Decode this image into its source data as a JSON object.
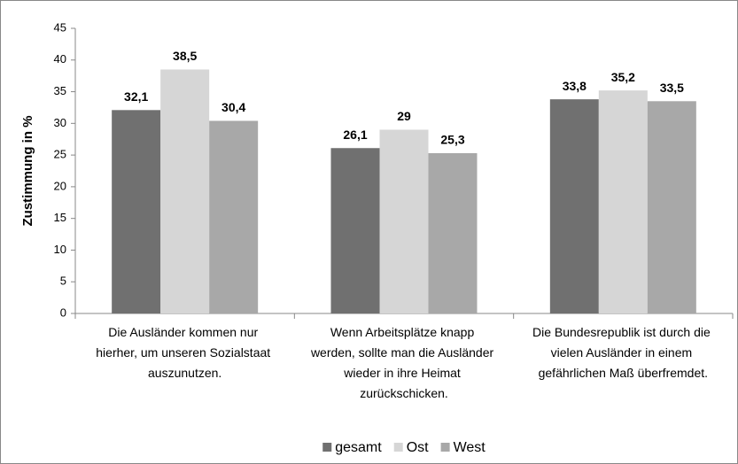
{
  "chart_data": {
    "type": "bar",
    "y_label": "Zustimmung in %",
    "categories": [
      "Die Ausländer kommen nur hierher, um unseren Sozialstaat auszunutzen.",
      "Wenn Arbeitsplätze knapp werden, sollte man die Ausländer wieder in ihre Heimat zurückschicken.",
      "Die Bundesrepublik ist durch die vielen Ausländer in einem gefährlichen Maß überfremdet."
    ],
    "series": [
      {
        "name": "gesamt",
        "color": "#707070",
        "values": [
          32.1,
          26.1,
          33.8
        ],
        "value_labels": [
          "32,1",
          "26,1",
          "33,8"
        ]
      },
      {
        "name": "Ost",
        "color": "#d6d6d6",
        "values": [
          38.5,
          29,
          35.2
        ],
        "value_labels": [
          "38,5",
          "29",
          "35,2"
        ]
      },
      {
        "name": "West",
        "color": "#a8a8a8",
        "values": [
          30.4,
          25.3,
          33.5
        ],
        "value_labels": [
          "30,4",
          "25,3",
          "33,5"
        ]
      }
    ],
    "ylim": [
      0,
      45
    ],
    "yticks": [
      0,
      5,
      10,
      15,
      20,
      25,
      30,
      35,
      40,
      45
    ],
    "grid": false,
    "legend": "bottom"
  }
}
